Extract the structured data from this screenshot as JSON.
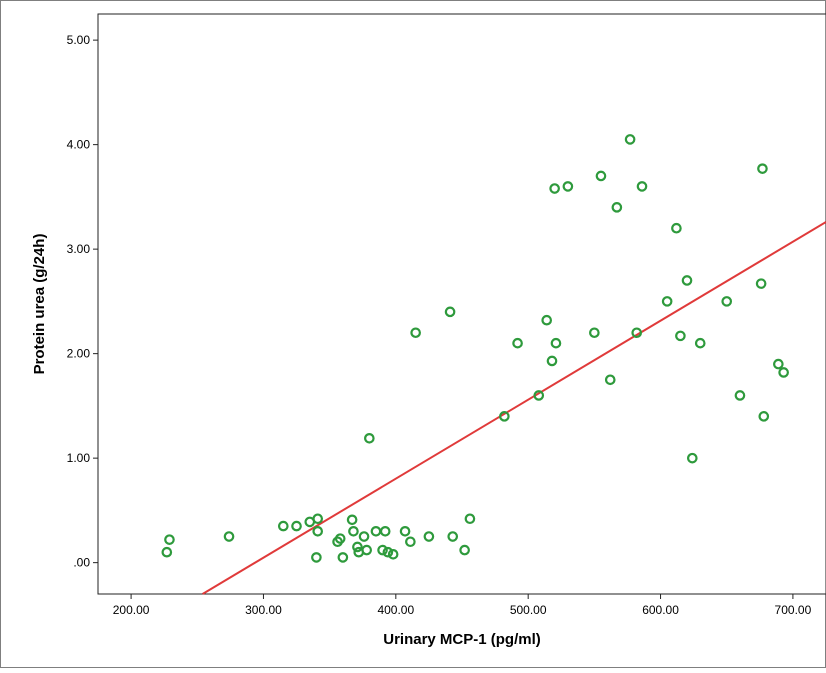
{
  "chart_data": {
    "type": "scatter",
    "xlabel": "Urinary MCP-1 (pg/ml)",
    "ylabel": "Protein urea (g/24h)",
    "xlim": [
      175,
      725
    ],
    "ylim": [
      -0.3,
      5.25
    ],
    "x_ticks": [
      {
        "value": 200,
        "label": "200.00"
      },
      {
        "value": 300,
        "label": "300.00"
      },
      {
        "value": 400,
        "label": "400.00"
      },
      {
        "value": 500,
        "label": "500.00"
      },
      {
        "value": 600,
        "label": "600.00"
      },
      {
        "value": 700,
        "label": "700.00"
      }
    ],
    "y_ticks": [
      {
        "value": 0,
        "label": ".00"
      },
      {
        "value": 1,
        "label": "1.00"
      },
      {
        "value": 2,
        "label": "2.00"
      },
      {
        "value": 3,
        "label": "3.00"
      },
      {
        "value": 4,
        "label": "4.00"
      },
      {
        "value": 5,
        "label": "5.00"
      }
    ],
    "grid": false,
    "marker_color": "#2e9a3c",
    "fit_line_color": "#e03a3a",
    "fit_line": {
      "x": [
        254,
        725
      ],
      "y": [
        -0.3,
        3.26
      ]
    },
    "points": [
      {
        "x": 227,
        "y": 0.1
      },
      {
        "x": 229,
        "y": 0.22
      },
      {
        "x": 274,
        "y": 0.25
      },
      {
        "x": 315,
        "y": 0.35
      },
      {
        "x": 325,
        "y": 0.35
      },
      {
        "x": 335,
        "y": 0.39
      },
      {
        "x": 341,
        "y": 0.42
      },
      {
        "x": 341,
        "y": 0.3
      },
      {
        "x": 340,
        "y": 0.05
      },
      {
        "x": 356,
        "y": 0.2
      },
      {
        "x": 358,
        "y": 0.23
      },
      {
        "x": 360,
        "y": 0.05
      },
      {
        "x": 367,
        "y": 0.41
      },
      {
        "x": 368,
        "y": 0.3
      },
      {
        "x": 371,
        "y": 0.15
      },
      {
        "x": 372,
        "y": 0.1
      },
      {
        "x": 376,
        "y": 0.25
      },
      {
        "x": 378,
        "y": 0.12
      },
      {
        "x": 380,
        "y": 1.19
      },
      {
        "x": 385,
        "y": 0.3
      },
      {
        "x": 390,
        "y": 0.12
      },
      {
        "x": 392,
        "y": 0.3
      },
      {
        "x": 394,
        "y": 0.1
      },
      {
        "x": 398,
        "y": 0.08
      },
      {
        "x": 407,
        "y": 0.3
      },
      {
        "x": 411,
        "y": 0.2
      },
      {
        "x": 415,
        "y": 2.2
      },
      {
        "x": 425,
        "y": 0.25
      },
      {
        "x": 441,
        "y": 2.4
      },
      {
        "x": 443,
        "y": 0.25
      },
      {
        "x": 452,
        "y": 0.12
      },
      {
        "x": 456,
        "y": 0.42
      },
      {
        "x": 482,
        "y": 1.4
      },
      {
        "x": 492,
        "y": 2.1
      },
      {
        "x": 508,
        "y": 1.6
      },
      {
        "x": 514,
        "y": 2.32
      },
      {
        "x": 518,
        "y": 1.93
      },
      {
        "x": 520,
        "y": 3.58
      },
      {
        "x": 521,
        "y": 2.1
      },
      {
        "x": 530,
        "y": 3.6
      },
      {
        "x": 550,
        "y": 2.2
      },
      {
        "x": 555,
        "y": 3.7
      },
      {
        "x": 562,
        "y": 1.75
      },
      {
        "x": 567,
        "y": 3.4
      },
      {
        "x": 577,
        "y": 4.05
      },
      {
        "x": 582,
        "y": 2.2
      },
      {
        "x": 586,
        "y": 3.6
      },
      {
        "x": 605,
        "y": 2.5
      },
      {
        "x": 612,
        "y": 3.2
      },
      {
        "x": 615,
        "y": 2.17
      },
      {
        "x": 620,
        "y": 2.7
      },
      {
        "x": 624,
        "y": 1.0
      },
      {
        "x": 630,
        "y": 2.1
      },
      {
        "x": 650,
        "y": 2.5
      },
      {
        "x": 660,
        "y": 1.6
      },
      {
        "x": 676,
        "y": 2.67
      },
      {
        "x": 677,
        "y": 3.77
      },
      {
        "x": 678,
        "y": 1.4
      },
      {
        "x": 689,
        "y": 1.9
      },
      {
        "x": 693,
        "y": 1.82
      }
    ]
  }
}
